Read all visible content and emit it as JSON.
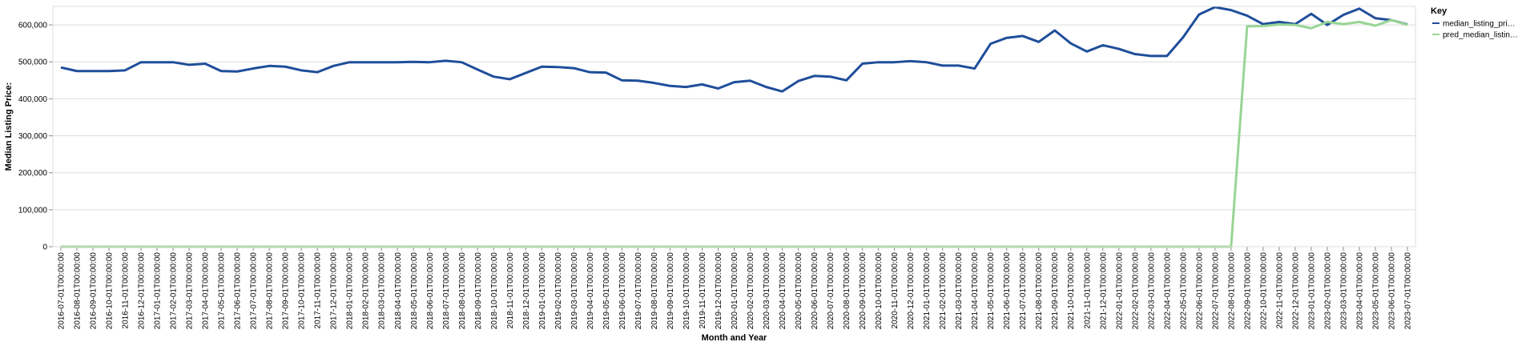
{
  "chart_data": {
    "type": "line",
    "xlabel": "Month and Year",
    "ylabel": "Median Listing Price:",
    "ylim": [
      0,
      650000
    ],
    "yticks": [
      0,
      100000,
      200000,
      300000,
      400000,
      500000,
      600000
    ],
    "ytick_labels": [
      "0",
      "100,000",
      "200,000",
      "300,000",
      "400,000",
      "500,000",
      "600,000"
    ],
    "grid": true,
    "legend": {
      "title": "Key",
      "placement": "top-right",
      "entries": [
        "median_listing_pri…",
        "pred_median_listin…"
      ]
    },
    "x": [
      "2016-07-01T00:00:00",
      "2016-08-01T00:00:00",
      "2016-09-01T00:00:00",
      "2016-10-01T00:00:00",
      "2016-11-01T00:00:00",
      "2016-12-01T00:00:00",
      "2017-01-01T00:00:00",
      "2017-02-01T00:00:00",
      "2017-03-01T00:00:00",
      "2017-04-01T00:00:00",
      "2017-05-01T00:00:00",
      "2017-06-01T00:00:00",
      "2017-07-01T00:00:00",
      "2017-08-01T00:00:00",
      "2017-09-01T00:00:00",
      "2017-10-01T00:00:00",
      "2017-11-01T00:00:00",
      "2017-12-01T00:00:00",
      "2018-01-01T00:00:00",
      "2018-02-01T00:00:00",
      "2018-03-01T00:00:00",
      "2018-04-01T00:00:00",
      "2018-05-01T00:00:00",
      "2018-06-01T00:00:00",
      "2018-07-01T00:00:00",
      "2018-08-01T00:00:00",
      "2018-09-01T00:00:00",
      "2018-10-01T00:00:00",
      "2018-11-01T00:00:00",
      "2018-12-01T00:00:00",
      "2019-01-01T00:00:00",
      "2019-02-01T00:00:00",
      "2019-03-01T00:00:00",
      "2019-04-01T00:00:00",
      "2019-05-01T00:00:00",
      "2019-06-01T00:00:00",
      "2019-07-01T00:00:00",
      "2019-08-01T00:00:00",
      "2019-09-01T00:00:00",
      "2019-10-01T00:00:00",
      "2019-11-01T00:00:00",
      "2019-12-01T00:00:00",
      "2020-01-01T00:00:00",
      "2020-02-01T00:00:00",
      "2020-03-01T00:00:00",
      "2020-04-01T00:00:00",
      "2020-05-01T00:00:00",
      "2020-06-01T00:00:00",
      "2020-07-01T00:00:00",
      "2020-08-01T00:00:00",
      "2020-09-01T00:00:00",
      "2020-10-01T00:00:00",
      "2020-11-01T00:00:00",
      "2020-12-01T00:00:00",
      "2021-01-01T00:00:00",
      "2021-02-01T00:00:00",
      "2021-03-01T00:00:00",
      "2021-04-01T00:00:00",
      "2021-05-01T00:00:00",
      "2021-06-01T00:00:00",
      "2021-07-01T00:00:00",
      "2021-08-01T00:00:00",
      "2021-09-01T00:00:00",
      "2021-10-01T00:00:00",
      "2021-11-01T00:00:00",
      "2021-12-01T00:00:00",
      "2022-01-01T00:00:00",
      "2022-02-01T00:00:00",
      "2022-03-01T00:00:00",
      "2022-04-01T00:00:00",
      "2022-05-01T00:00:00",
      "2022-06-01T00:00:00",
      "2022-07-01T00:00:00",
      "2022-08-01T00:00:00",
      "2022-09-01T00:00:00",
      "2022-10-01T00:00:00",
      "2022-11-01T00:00:00",
      "2022-12-01T00:00:00",
      "2023-01-01T00:00:00",
      "2023-02-01T00:00:00",
      "2023-03-01T00:00:00",
      "2023-04-01T00:00:00",
      "2023-05-01T00:00:00",
      "2023-06-01T00:00:00",
      "2023-07-01T00:00:00"
    ],
    "series": [
      {
        "name": "median_listing_pri…",
        "color": "#1f4e9a",
        "values": [
          485000,
          475000,
          475000,
          475000,
          477000,
          499000,
          499000,
          499000,
          492000,
          495000,
          475000,
          474000,
          482000,
          489000,
          487000,
          477000,
          472000,
          489000,
          499000,
          499000,
          499000,
          499000,
          500000,
          499000,
          503000,
          499000,
          479000,
          460000,
          453000,
          470000,
          487000,
          486000,
          483000,
          472000,
          471000,
          450000,
          449000,
          443000,
          435000,
          432000,
          439000,
          428000,
          445000,
          449000,
          432000,
          420000,
          448000,
          462000,
          460000,
          450000,
          495000,
          499000,
          499000,
          502000,
          499000,
          490000,
          490000,
          482000,
          549000,
          565000,
          570000,
          554000,
          585000,
          550000,
          528000,
          545000,
          535000,
          521000,
          516000,
          516000,
          566000,
          628000,
          648000,
          640000,
          625000,
          602000,
          608000,
          602000,
          630000,
          600000,
          627000,
          644000,
          618000,
          613000,
          601000
        ]
      },
      {
        "name": "pred_median_listin…",
        "color": "#98d594",
        "values": [
          0,
          0,
          0,
          0,
          0,
          0,
          0,
          0,
          0,
          0,
          0,
          0,
          0,
          0,
          0,
          0,
          0,
          0,
          0,
          0,
          0,
          0,
          0,
          0,
          0,
          0,
          0,
          0,
          0,
          0,
          0,
          0,
          0,
          0,
          0,
          0,
          0,
          0,
          0,
          0,
          0,
          0,
          0,
          0,
          0,
          0,
          0,
          0,
          0,
          0,
          0,
          0,
          0,
          0,
          0,
          0,
          0,
          0,
          0,
          0,
          0,
          0,
          0,
          0,
          0,
          0,
          0,
          0,
          0,
          0,
          0,
          0,
          0,
          0,
          596000,
          597000,
          601000,
          600000,
          591000,
          608000,
          602000,
          608000,
          598000,
          613000,
          600000
        ]
      }
    ]
  }
}
